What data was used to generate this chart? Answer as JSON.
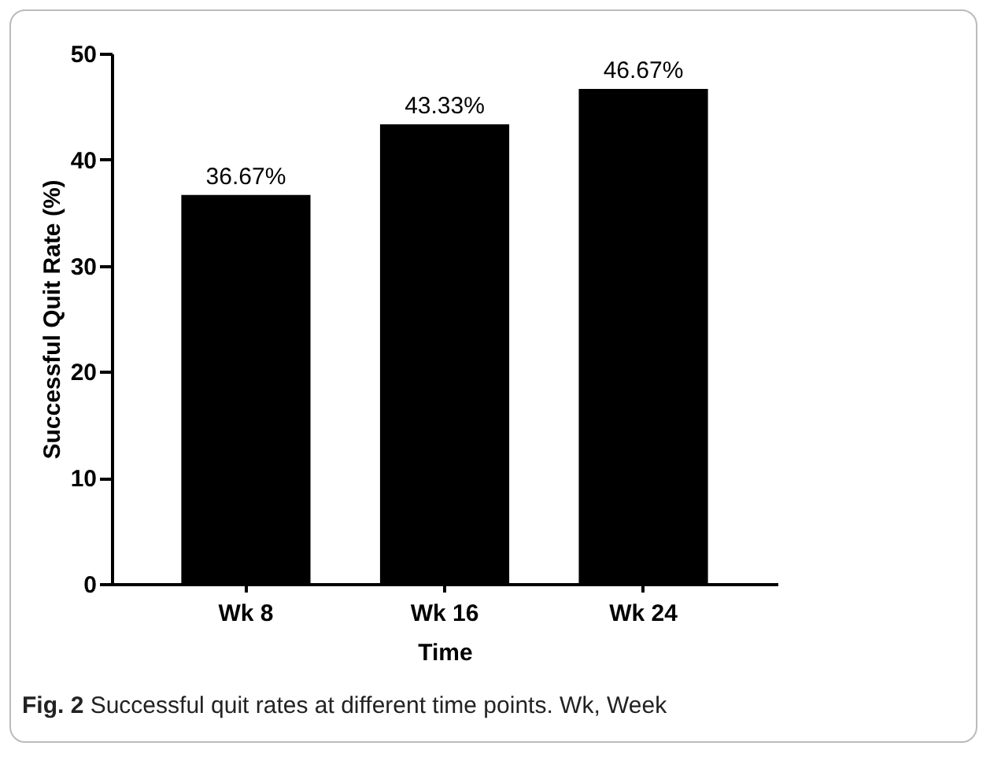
{
  "chart_data": {
    "type": "bar",
    "xlabel": "Time",
    "ylabel": "Successful Quit Rate (%)",
    "categories": [
      "Wk  8",
      "Wk 16",
      "Wk 24"
    ],
    "values": [
      36.67,
      43.33,
      46.67
    ],
    "value_labels": [
      "36.67%",
      "43.33%",
      "46.67%"
    ],
    "color": "#000000",
    "ylim": [
      0,
      50
    ],
    "yticks": [
      0,
      10,
      20,
      30,
      40,
      50
    ],
    "grid": false,
    "annotations": [
      "Fig. 2 Successful quit rates at different time points. Wk, Week"
    ]
  }
}
